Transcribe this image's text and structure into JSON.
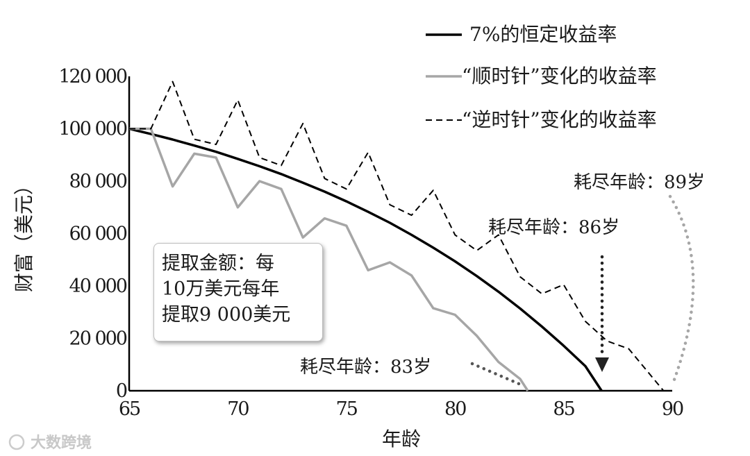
{
  "chart_data": {
    "type": "line",
    "xlabel": "年龄",
    "ylabel": "财富（美元）",
    "xlim": [
      65,
      90
    ],
    "ylim": [
      0,
      120000
    ],
    "x_ticks": [
      {
        "value": 65,
        "label": "65"
      },
      {
        "value": 70,
        "label": "70"
      },
      {
        "value": 75,
        "label": "75"
      },
      {
        "value": 80,
        "label": "80"
      },
      {
        "value": 85,
        "label": "85"
      },
      {
        "value": 90,
        "label": "90"
      }
    ],
    "y_ticks": [
      {
        "value": 0,
        "label": "0"
      },
      {
        "value": 20000,
        "label": "20 000"
      },
      {
        "value": 40000,
        "label": "40 000"
      },
      {
        "value": 60000,
        "label": "60 000"
      },
      {
        "value": 80000,
        "label": "80 000"
      },
      {
        "value": 100000,
        "label": "100 000"
      },
      {
        "value": 120000,
        "label": "120 000"
      }
    ],
    "legend_position": "top-right",
    "series": [
      {
        "name": "7%的恒定收益率",
        "style": "solid",
        "color": "#000000",
        "points": [
          [
            65,
            100000
          ],
          [
            66,
            98000
          ],
          [
            67,
            95900
          ],
          [
            68,
            93600
          ],
          [
            69,
            91200
          ],
          [
            70,
            88500
          ],
          [
            71,
            85700
          ],
          [
            72,
            82700
          ],
          [
            73,
            79400
          ],
          [
            74,
            76000
          ],
          [
            75,
            72300
          ],
          [
            76,
            68300
          ],
          [
            77,
            64100
          ],
          [
            78,
            59500
          ],
          [
            79,
            54600
          ],
          [
            80,
            49400
          ],
          [
            81,
            43800
          ],
          [
            82,
            37800
          ],
          [
            83,
            31400
          ],
          [
            84,
            24500
          ],
          [
            85,
            17200
          ],
          [
            86,
            9400
          ],
          [
            86.75,
            0
          ]
        ]
      },
      {
        "name": "“顺时针”变化的收益率",
        "style": "solid",
        "color": "#a6a6a6",
        "points": [
          [
            65,
            100000
          ],
          [
            66,
            100000
          ],
          [
            67,
            78000
          ],
          [
            68,
            90500
          ],
          [
            69,
            89000
          ],
          [
            70,
            70000
          ],
          [
            71,
            80000
          ],
          [
            72,
            77000
          ],
          [
            73,
            58500
          ],
          [
            74,
            65800
          ],
          [
            75,
            63000
          ],
          [
            76,
            46000
          ],
          [
            77,
            49000
          ],
          [
            78,
            44000
          ],
          [
            79,
            31500
          ],
          [
            80,
            29000
          ],
          [
            81,
            21000
          ],
          [
            82,
            11000
          ],
          [
            83,
            4500
          ],
          [
            83.35,
            0
          ]
        ]
      },
      {
        "name": "“逆时针”变化的收益率",
        "style": "dashed",
        "color": "#000000",
        "points": [
          [
            65,
            100000
          ],
          [
            66,
            100000
          ],
          [
            67,
            118000
          ],
          [
            68,
            96000
          ],
          [
            69,
            94000
          ],
          [
            70,
            111000
          ],
          [
            71,
            89000
          ],
          [
            72,
            86000
          ],
          [
            73,
            102000
          ],
          [
            74,
            81000
          ],
          [
            75,
            77000
          ],
          [
            76,
            91000
          ],
          [
            77,
            71000
          ],
          [
            78,
            67000
          ],
          [
            79,
            76500
          ],
          [
            80,
            59500
          ],
          [
            81,
            53500
          ],
          [
            82,
            59500
          ],
          [
            83,
            43500
          ],
          [
            84,
            37000
          ],
          [
            85,
            40500
          ],
          [
            86,
            26500
          ],
          [
            87,
            19000
          ],
          [
            88,
            16000
          ],
          [
            89,
            6000
          ],
          [
            89.6,
            0
          ]
        ]
      }
    ],
    "annotations": [
      {
        "text": "耗尽年龄：89岁",
        "arrow_color": "#a6a6a6",
        "target": [
          89.6,
          0
        ]
      },
      {
        "text": "耗尽年龄：86岁",
        "arrow_color": "#333333",
        "target": [
          86.75,
          0
        ]
      },
      {
        "text": "耗尽年龄：83岁",
        "arrow_color": "#555555",
        "target": [
          83.35,
          0
        ]
      }
    ],
    "note": {
      "lines": [
        "提取金额：每",
        "10万美元每年",
        "提取9 000美元"
      ]
    }
  },
  "watermark": "大数跨境"
}
